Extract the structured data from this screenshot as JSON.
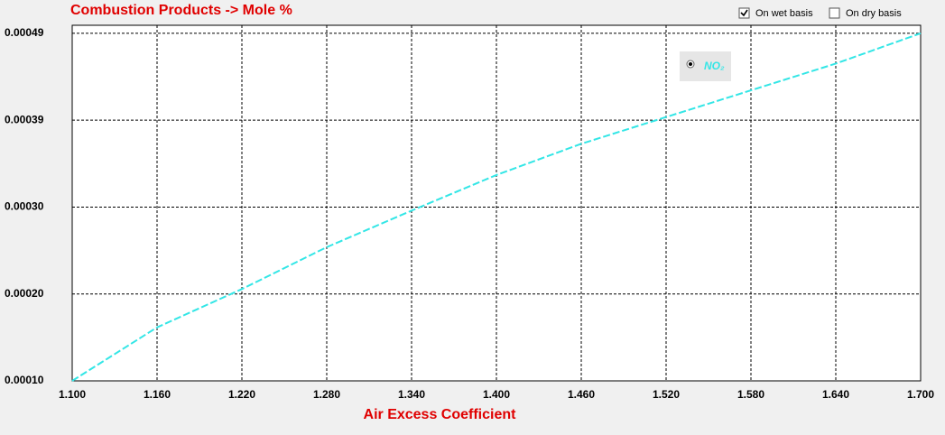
{
  "chart_data": {
    "type": "line",
    "title": "Combustion Products -> Mole %",
    "x_label": "Air Excess Coefficient",
    "x": [
      1.1,
      1.16,
      1.22,
      1.28,
      1.34,
      1.4,
      1.46,
      1.52,
      1.58,
      1.64,
      1.7
    ],
    "series": [
      {
        "name": "NO₂",
        "color": "#33e6e6",
        "values": [
          0.0001,
          0.00016,
          0.000203,
          0.00025,
          0.000291,
          0.000331,
          0.000366,
          0.000396,
          0.000426,
          0.000456,
          0.00049
        ]
      }
    ],
    "xlim": [
      1.1,
      1.7
    ],
    "xticks": [
      {
        "value": 1.1,
        "label": "1.100"
      },
      {
        "value": 1.16,
        "label": "1.160"
      },
      {
        "value": 1.22,
        "label": "1.220"
      },
      {
        "value": 1.28,
        "label": "1.280"
      },
      {
        "value": 1.34,
        "label": "1.340"
      },
      {
        "value": 1.4,
        "label": "1.400"
      },
      {
        "value": 1.46,
        "label": "1.460"
      },
      {
        "value": 1.52,
        "label": "1.520"
      },
      {
        "value": 1.58,
        "label": "1.580"
      },
      {
        "value": 1.64,
        "label": "1.640"
      },
      {
        "value": 1.7,
        "label": "1.700"
      }
    ],
    "ylim": [
      0.0001,
      0.000499
    ],
    "yticks": [
      {
        "value": 0.0001,
        "label": "0.00010"
      },
      {
        "value": 0.0001975,
        "label": "0.00020"
      },
      {
        "value": 0.000295,
        "label": "0.00030"
      },
      {
        "value": 0.0003925,
        "label": "0.00039"
      },
      {
        "value": 0.00049,
        "label": "0.00049"
      }
    ],
    "grid": true
  },
  "controls": [
    {
      "label": "On wet basis",
      "checked": true
    },
    {
      "label": "On dry basis",
      "checked": false
    }
  ]
}
